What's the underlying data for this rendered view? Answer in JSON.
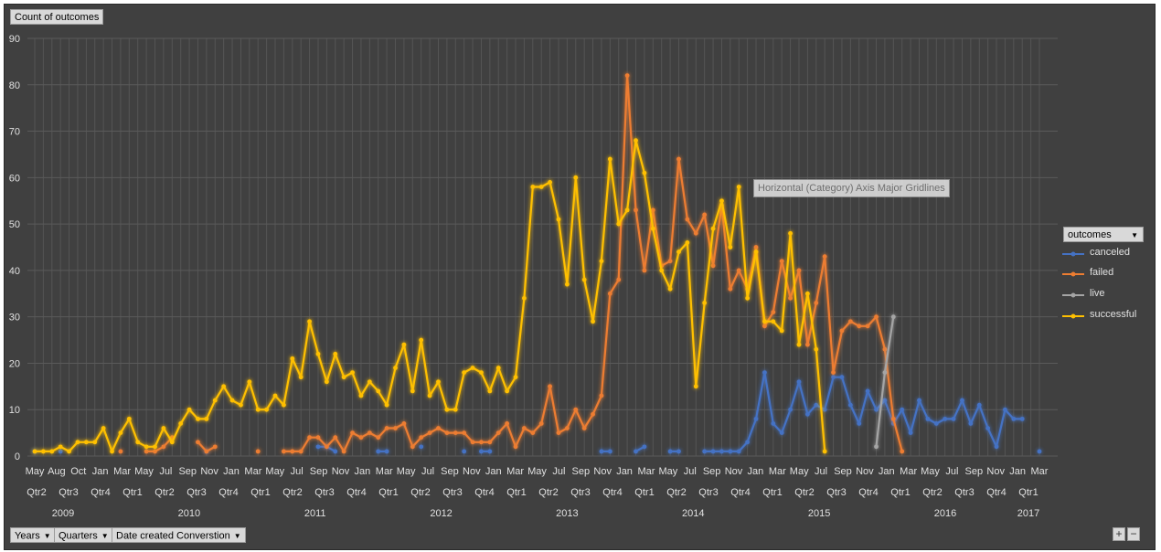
{
  "field_buttons": {
    "value_field": "Count of outcomes",
    "years": "Years",
    "quarters": "Quarters",
    "date_created": "Date created Converstion"
  },
  "legend": {
    "title": "outcomes",
    "items": [
      {
        "label": "canceled",
        "color": "#4472c4"
      },
      {
        "label": "failed",
        "color": "#ed7d31"
      },
      {
        "label": "live",
        "color": "#a5a5a5"
      },
      {
        "label": "successful",
        "color": "#ffc000"
      }
    ]
  },
  "tooltip": "Horizontal (Category) Axis Major Gridlines",
  "mini_buttons": {
    "plus": "+",
    "minus": "−"
  },
  "chart_data": {
    "type": "line",
    "ylim": [
      0,
      90
    ],
    "yticks": [
      0,
      10,
      20,
      30,
      40,
      50,
      60,
      70,
      80,
      90
    ],
    "grid": true,
    "legend_position": "right",
    "month_labels": [
      "May",
      "Aug",
      "Oct",
      "Jan",
      "Mar",
      "May",
      "Jul",
      "Sep",
      "Nov",
      "Jan",
      "Mar",
      "May",
      "Jul",
      "Sep",
      "Nov",
      "Jan",
      "Mar",
      "May",
      "Jul",
      "Sep",
      "Nov",
      "Jan",
      "Mar",
      "May",
      "Jul",
      "Sep",
      "Nov",
      "Jan",
      "Mar",
      "May",
      "Jul",
      "Sep",
      "Nov",
      "Jan",
      "Mar",
      "May",
      "Jul",
      "Sep",
      "Nov",
      "Jan",
      "Mar",
      "May",
      "Jul",
      "Sep",
      "Nov",
      "Jan",
      "Mar"
    ],
    "quarter_labels": [
      "Qtr2",
      "Qtr3",
      "Qtr4",
      "Qtr1",
      "Qtr2",
      "Qtr3",
      "Qtr4",
      "Qtr1",
      "Qtr2",
      "Qtr3",
      "Qtr4",
      "Qtr1",
      "Qtr2",
      "Qtr3",
      "Qtr4",
      "Qtr1",
      "Qtr2",
      "Qtr3",
      "Qtr4",
      "Qtr1",
      "Qtr2",
      "Qtr3",
      "Qtr4",
      "Qtr1",
      "Qtr2",
      "Qtr3",
      "Qtr4",
      "Qtr1",
      "Qtr2",
      "Qtr3",
      "Qtr4",
      "Qtr1"
    ],
    "year_labels": [
      "2009",
      "2010",
      "2011",
      "2012",
      "2013",
      "2014",
      "2015",
      "2016",
      "2017"
    ],
    "series": [
      {
        "name": "canceled",
        "color": "#4472c4",
        "values": [
          1,
          null,
          null,
          1,
          null,
          null,
          null,
          null,
          null,
          null,
          null,
          null,
          null,
          null,
          null,
          null,
          null,
          null,
          null,
          null,
          1,
          null,
          null,
          null,
          null,
          null,
          null,
          null,
          null,
          null,
          null,
          null,
          null,
          2,
          2,
          1,
          null,
          null,
          null,
          null,
          1,
          1,
          null,
          null,
          null,
          2,
          null,
          null,
          null,
          null,
          1,
          null,
          1,
          1,
          null,
          null,
          null,
          null,
          null,
          null,
          null,
          null,
          null,
          null,
          null,
          null,
          1,
          1,
          null,
          null,
          1,
          2,
          null,
          null,
          1,
          1,
          null,
          null,
          1,
          1,
          1,
          1,
          1,
          3,
          8,
          18,
          7,
          5,
          10,
          16,
          9,
          11,
          10,
          17,
          17,
          11,
          7,
          14,
          10,
          12,
          7,
          10,
          5,
          12,
          8,
          7,
          8,
          8,
          12,
          7,
          11,
          6,
          2,
          10,
          8,
          8,
          null,
          1
        ]
      },
      {
        "name": "failed",
        "color": "#ed7d31",
        "values": [
          null,
          null,
          null,
          null,
          null,
          null,
          null,
          null,
          null,
          null,
          1,
          null,
          null,
          1,
          1,
          2,
          4,
          null,
          null,
          3,
          1,
          2,
          null,
          null,
          null,
          null,
          1,
          null,
          null,
          1,
          1,
          1,
          4,
          4,
          2,
          4,
          1,
          5,
          4,
          5,
          4,
          6,
          6,
          7,
          2,
          4,
          5,
          6,
          5,
          5,
          5,
          3,
          3,
          3,
          5,
          7,
          2,
          6,
          5,
          7,
          15,
          5,
          6,
          10,
          6,
          9,
          13,
          35,
          38,
          82,
          53,
          40,
          53,
          41,
          42,
          64,
          51,
          48,
          52,
          41,
          54,
          36,
          40,
          36,
          45,
          28,
          31,
          42,
          34,
          40,
          24,
          33,
          43,
          18,
          27,
          29,
          28,
          28,
          30,
          23,
          8,
          1
        ]
      },
      {
        "name": "live",
        "color": "#a5a5a5",
        "values": [
          null,
          null,
          null,
          null,
          null,
          null,
          null,
          null,
          null,
          null,
          null,
          null,
          null,
          null,
          null,
          null,
          null,
          null,
          null,
          null,
          null,
          null,
          null,
          null,
          null,
          null,
          null,
          null,
          null,
          null,
          null,
          null,
          null,
          null,
          null,
          null,
          null,
          null,
          null,
          null,
          null,
          null,
          null,
          null,
          null,
          null,
          null,
          null,
          null,
          null,
          null,
          null,
          null,
          null,
          null,
          null,
          null,
          null,
          null,
          null,
          null,
          null,
          null,
          null,
          null,
          null,
          null,
          null,
          null,
          null,
          null,
          null,
          null,
          null,
          null,
          null,
          null,
          null,
          null,
          null,
          null,
          null,
          null,
          null,
          null,
          null,
          null,
          null,
          null,
          null,
          null,
          null,
          null,
          null,
          null,
          null,
          null,
          null,
          2,
          18,
          30
        ]
      },
      {
        "name": "successful",
        "color": "#ffc000",
        "values": [
          1,
          1,
          1,
          2,
          1,
          3,
          3,
          3,
          6,
          1,
          5,
          8,
          3,
          2,
          2,
          6,
          3,
          7,
          10,
          8,
          8,
          12,
          15,
          12,
          11,
          16,
          10,
          10,
          13,
          11,
          21,
          17,
          29,
          22,
          16,
          22,
          17,
          18,
          13,
          16,
          14,
          11,
          19,
          24,
          14,
          25,
          13,
          16,
          10,
          10,
          18,
          19,
          18,
          14,
          19,
          14,
          17,
          34,
          58,
          58,
          59,
          51,
          37,
          60,
          38,
          29,
          42,
          64,
          50,
          53,
          68,
          61,
          49,
          40,
          36,
          44,
          46,
          15,
          33,
          49,
          55,
          45,
          58,
          34,
          44,
          29,
          29,
          27,
          48,
          24,
          35,
          23,
          1
        ]
      }
    ]
  }
}
